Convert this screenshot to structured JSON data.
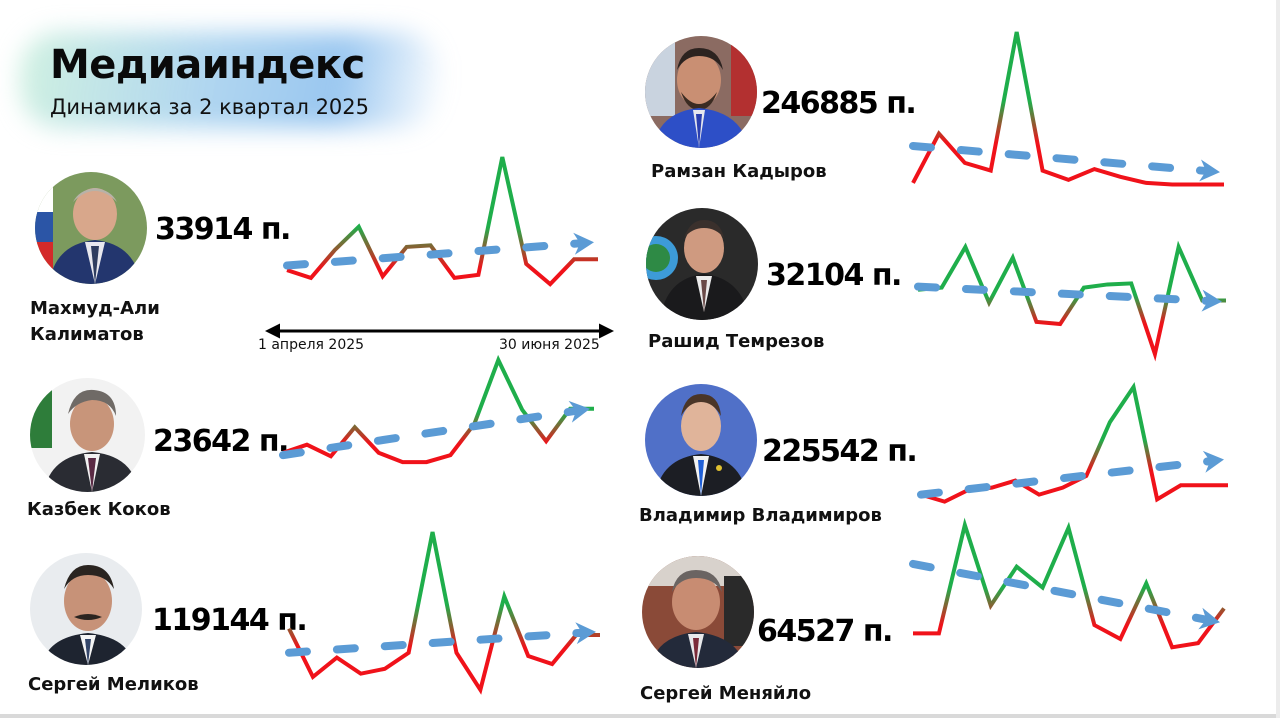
{
  "header": {
    "title": "Медиаиндекс",
    "subtitle": "Динамика за 2 квартал 2025"
  },
  "axis": {
    "start_label": "1 апреля 2025",
    "end_label": "30 июня 2025"
  },
  "colors": {
    "up": "#1fae4b",
    "down": "#f0121a",
    "trend": "#5b9bd5",
    "text": "#000000"
  },
  "people": [
    {
      "id": "kalimatov",
      "name_line1": "Махмуд-Али",
      "name_line2": "Калиматов",
      "score": "33914 п."
    },
    {
      "id": "kokov",
      "name_line1": "Казбек Коков",
      "name_line2": "",
      "score": "23642 п."
    },
    {
      "id": "melikov",
      "name_line1": "Сергей Меликов",
      "name_line2": "",
      "score": "119144 п."
    },
    {
      "id": "kadyrov",
      "name_line1": "Рамзан Кадыров",
      "name_line2": "",
      "score": "246885 п."
    },
    {
      "id": "temrezov",
      "name_line1": "Рашид Темрезов",
      "name_line2": "",
      "score": "32104 п."
    },
    {
      "id": "vladimirov",
      "name_line1": "Владимир Владимиров",
      "name_line2": "",
      "score": "225542 п."
    },
    {
      "id": "menyaylo",
      "name_line1": "Сергей Меняйло",
      "name_line2": "",
      "score": "64527 п."
    }
  ],
  "chart_data": [
    {
      "type": "line",
      "title": "Махмуд-Али Калиматов",
      "score": 33914,
      "xlabel": "1 апреля 2025 → 30 июня 2025",
      "x": [
        1,
        2,
        3,
        4,
        5,
        6,
        7,
        8,
        9,
        10,
        11,
        12,
        13,
        14
      ],
      "values": [
        27,
        22,
        40,
        55,
        23,
        42,
        43,
        22,
        24,
        100,
        31,
        18,
        34,
        34
      ],
      "trend": {
        "start": 30,
        "end": 45,
        "direction": "up"
      }
    },
    {
      "type": "line",
      "title": "Казбек Коков",
      "score": 23642,
      "x": [
        1,
        2,
        3,
        4,
        5,
        6,
        7,
        8,
        9,
        10,
        11,
        12,
        13,
        14
      ],
      "values": [
        20,
        27,
        17,
        42,
        20,
        12,
        12,
        18,
        45,
        100,
        57,
        30,
        58,
        58
      ],
      "trend": {
        "start": 18,
        "end": 58,
        "direction": "up"
      }
    },
    {
      "type": "line",
      "title": "Сергей Меликов",
      "score": 119144,
      "x": [
        1,
        2,
        3,
        4,
        5,
        6,
        7,
        8,
        9,
        10,
        11,
        12,
        13,
        14
      ],
      "values": [
        40,
        10,
        22,
        12,
        15,
        25,
        100,
        25,
        2,
        60,
        23,
        18,
        36,
        36
      ],
      "trend": {
        "start": 25,
        "end": 38,
        "direction": "up"
      }
    },
    {
      "type": "line",
      "title": "Рамзан Кадыров",
      "score": 246885,
      "x": [
        1,
        2,
        3,
        4,
        5,
        6,
        7,
        8,
        9,
        10,
        11,
        12,
        13
      ],
      "values": [
        2,
        34,
        15,
        10,
        100,
        10,
        4,
        11,
        6,
        2,
        1,
        1,
        1
      ],
      "trend": {
        "start": 26,
        "end": 9,
        "direction": "down"
      }
    },
    {
      "type": "line",
      "title": "Рашид Темрезов",
      "score": 32104,
      "x": [
        1,
        2,
        3,
        4,
        5,
        6,
        7,
        8,
        9,
        10,
        11,
        12,
        13,
        14
      ],
      "values": [
        60,
        62,
        100,
        48,
        90,
        30,
        28,
        62,
        65,
        66,
        0,
        100,
        50,
        50
      ],
      "trend": {
        "start": 63,
        "end": 49,
        "direction": "down"
      }
    },
    {
      "type": "line",
      "title": "Владимир Владимиров",
      "score": 225542,
      "x": [
        1,
        2,
        3,
        4,
        5,
        6,
        7,
        8,
        9,
        10,
        11,
        12,
        13,
        14
      ],
      "values": [
        8,
        2,
        12,
        14,
        20,
        8,
        14,
        24,
        70,
        100,
        4,
        16,
        16,
        16
      ],
      "trend": {
        "start": 8,
        "end": 38,
        "direction": "up"
      }
    },
    {
      "type": "line",
      "title": "Сергей Меняйло",
      "score": 64527,
      "x": [
        1,
        2,
        3,
        4,
        5,
        6,
        7,
        8,
        9,
        10,
        11,
        12,
        13
      ],
      "values": [
        22,
        22,
        100,
        42,
        70,
        55,
        98,
        28,
        18,
        58,
        12,
        15,
        40
      ],
      "trend": {
        "start": 72,
        "end": 30,
        "direction": "down"
      }
    }
  ]
}
